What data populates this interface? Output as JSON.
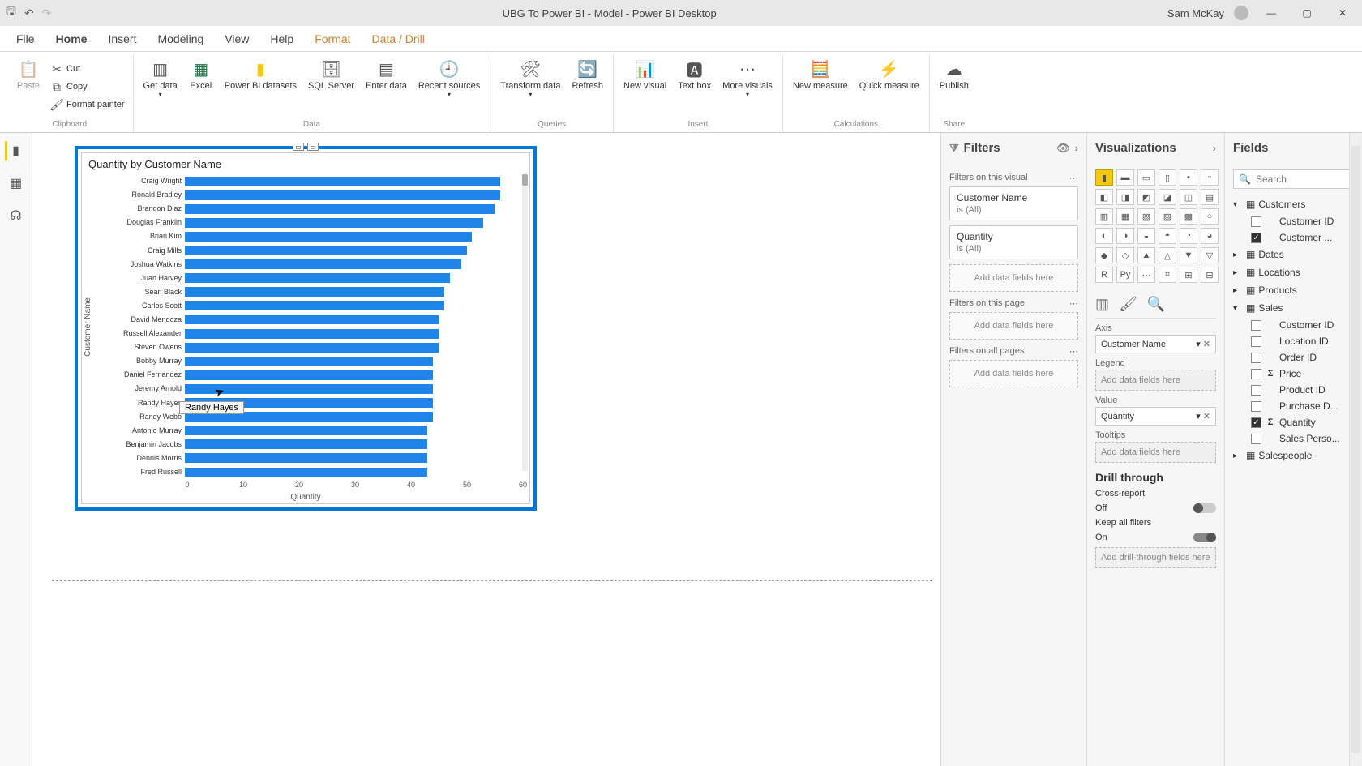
{
  "titlebar": {
    "title": "UBG To Power BI - Model - Power BI Desktop",
    "user": "Sam McKay"
  },
  "menu": {
    "file": "File",
    "home": "Home",
    "insert": "Insert",
    "modeling": "Modeling",
    "view": "View",
    "help": "Help",
    "format": "Format",
    "datadrill": "Data / Drill"
  },
  "ribbon": {
    "clipboard": {
      "label": "Clipboard",
      "paste": "Paste",
      "cut": "Cut",
      "copy": "Copy",
      "painter": "Format painter"
    },
    "data": {
      "label": "Data",
      "get": "Get data",
      "excel": "Excel",
      "pbi": "Power BI datasets",
      "sql": "SQL Server",
      "enter": "Enter data",
      "recent": "Recent sources"
    },
    "queries": {
      "label": "Queries",
      "transform": "Transform data",
      "refresh": "Refresh"
    },
    "insert": {
      "label": "Insert",
      "newviz": "New visual",
      "textbox": "Text box",
      "more": "More visuals"
    },
    "calc": {
      "label": "Calculations",
      "measure": "New measure",
      "quick": "Quick measure"
    },
    "share": {
      "label": "Share",
      "publish": "Publish"
    }
  },
  "chart": {
    "title": "Quantity by Customer Name",
    "y_axis_title": "Customer Name",
    "x_axis_title": "Quantity",
    "x_ticks": [
      0,
      10,
      20,
      30,
      40,
      50,
      60
    ],
    "x_max": 60,
    "bar_color": "#2085e8",
    "border_color": "#0178d4",
    "rows": [
      {
        "name": "Craig Wright",
        "v": 56
      },
      {
        "name": "Ronald Bradley",
        "v": 56
      },
      {
        "name": "Brandon Diaz",
        "v": 55
      },
      {
        "name": "Douglas Franklin",
        "v": 53
      },
      {
        "name": "Brian Kim",
        "v": 51
      },
      {
        "name": "Craig Mills",
        "v": 50
      },
      {
        "name": "Joshua Watkins",
        "v": 49
      },
      {
        "name": "Juan Harvey",
        "v": 47
      },
      {
        "name": "Sean Black",
        "v": 46
      },
      {
        "name": "Carlos Scott",
        "v": 46
      },
      {
        "name": "David Mendoza",
        "v": 45
      },
      {
        "name": "Russell Alexander",
        "v": 45
      },
      {
        "name": "Steven Owens",
        "v": 45
      },
      {
        "name": "Bobby Murray",
        "v": 44
      },
      {
        "name": "Daniel Fernandez",
        "v": 44
      },
      {
        "name": "Jeremy Arnold",
        "v": 44
      },
      {
        "name": "Randy Hayes",
        "v": 44
      },
      {
        "name": "Randy Webb",
        "v": 44
      },
      {
        "name": "Antonio Murray",
        "v": 43
      },
      {
        "name": "Benjamin Jacobs",
        "v": 43
      },
      {
        "name": "Dennis Morris",
        "v": 43
      },
      {
        "name": "Fred Russell",
        "v": 43
      }
    ],
    "tooltip": "Randy Hayes"
  },
  "filters": {
    "title": "Filters",
    "on_visual": "Filters on this visual",
    "on_page": "Filters on this page",
    "on_all": "Filters on all pages",
    "add": "Add data fields here",
    "cards": [
      {
        "title": "Customer Name",
        "sub": "is (All)"
      },
      {
        "title": "Quantity",
        "sub": "is (All)"
      }
    ]
  },
  "viz": {
    "title": "Visualizations",
    "axis": "Axis",
    "legend": "Legend",
    "value": "Value",
    "tooltips": "Tooltips",
    "add": "Add data fields here",
    "axis_field": "Customer Name",
    "value_field": "Quantity",
    "drill": "Drill through",
    "cross": "Cross-report",
    "off": "Off",
    "keep": "Keep all filters",
    "on": "On",
    "drill_add": "Add drill-through fields here"
  },
  "fields": {
    "title": "Fields",
    "search_placeholder": "Search",
    "tables": [
      {
        "name": "Customers",
        "expanded": true,
        "fields": [
          {
            "name": "Customer ID",
            "checked": false,
            "sigma": false
          },
          {
            "name": "Customer ...",
            "checked": true,
            "sigma": false
          }
        ]
      },
      {
        "name": "Dates",
        "expanded": false,
        "fields": []
      },
      {
        "name": "Locations",
        "expanded": false,
        "fields": []
      },
      {
        "name": "Products",
        "expanded": false,
        "fields": []
      },
      {
        "name": "Sales",
        "expanded": true,
        "fields": [
          {
            "name": "Customer ID",
            "checked": false,
            "sigma": false
          },
          {
            "name": "Location ID",
            "checked": false,
            "sigma": false
          },
          {
            "name": "Order ID",
            "checked": false,
            "sigma": false
          },
          {
            "name": "Price",
            "checked": false,
            "sigma": true
          },
          {
            "name": "Product ID",
            "checked": false,
            "sigma": false
          },
          {
            "name": "Purchase D...",
            "checked": false,
            "sigma": false
          },
          {
            "name": "Quantity",
            "checked": true,
            "sigma": true
          },
          {
            "name": "Sales Perso...",
            "checked": false,
            "sigma": false
          }
        ]
      },
      {
        "name": "Salespeople",
        "expanded": false,
        "fields": []
      }
    ]
  }
}
